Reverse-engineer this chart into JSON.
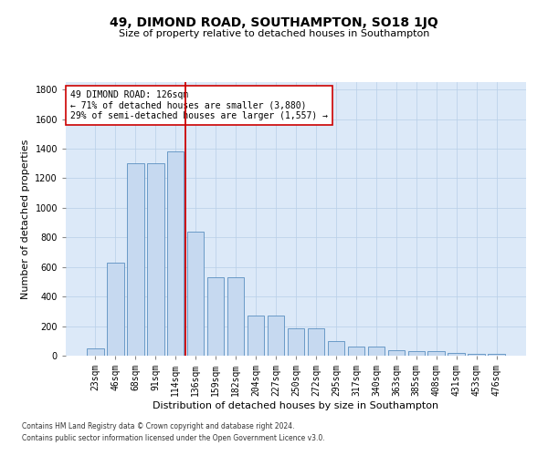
{
  "title": "49, DIMOND ROAD, SOUTHAMPTON, SO18 1JQ",
  "subtitle": "Size of property relative to detached houses in Southampton",
  "xlabel": "Distribution of detached houses by size in Southampton",
  "ylabel": "Number of detached properties",
  "categories": [
    "23sqm",
    "46sqm",
    "68sqm",
    "91sqm",
    "114sqm",
    "136sqm",
    "159sqm",
    "182sqm",
    "204sqm",
    "227sqm",
    "250sqm",
    "272sqm",
    "295sqm",
    "317sqm",
    "340sqm",
    "363sqm",
    "385sqm",
    "408sqm",
    "431sqm",
    "453sqm",
    "476sqm"
  ],
  "values": [
    50,
    630,
    1300,
    1300,
    1380,
    840,
    530,
    530,
    270,
    270,
    185,
    185,
    100,
    60,
    60,
    35,
    30,
    30,
    20,
    10,
    10
  ],
  "bar_color": "#c6d9f0",
  "bar_edge_color": "#5a8fc0",
  "vline_color": "#cc0000",
  "vline_pos": 4.5,
  "annotation_text": "49 DIMOND ROAD: 126sqm\n← 71% of detached houses are smaller (3,880)\n29% of semi-detached houses are larger (1,557) →",
  "annotation_box_color": "white",
  "annotation_box_edge": "#cc0000",
  "ylim": [
    0,
    1850
  ],
  "yticks": [
    0,
    200,
    400,
    600,
    800,
    1000,
    1200,
    1400,
    1600,
    1800
  ],
  "grid_color": "#b8cfe8",
  "background_color": "#dce9f8",
  "fig_background": "#ffffff",
  "footer_line1": "Contains HM Land Registry data © Crown copyright and database right 2024.",
  "footer_line2": "Contains public sector information licensed under the Open Government Licence v3.0.",
  "title_fontsize": 10,
  "subtitle_fontsize": 8,
  "axis_label_fontsize": 8,
  "tick_fontsize": 7,
  "annotation_fontsize": 7
}
